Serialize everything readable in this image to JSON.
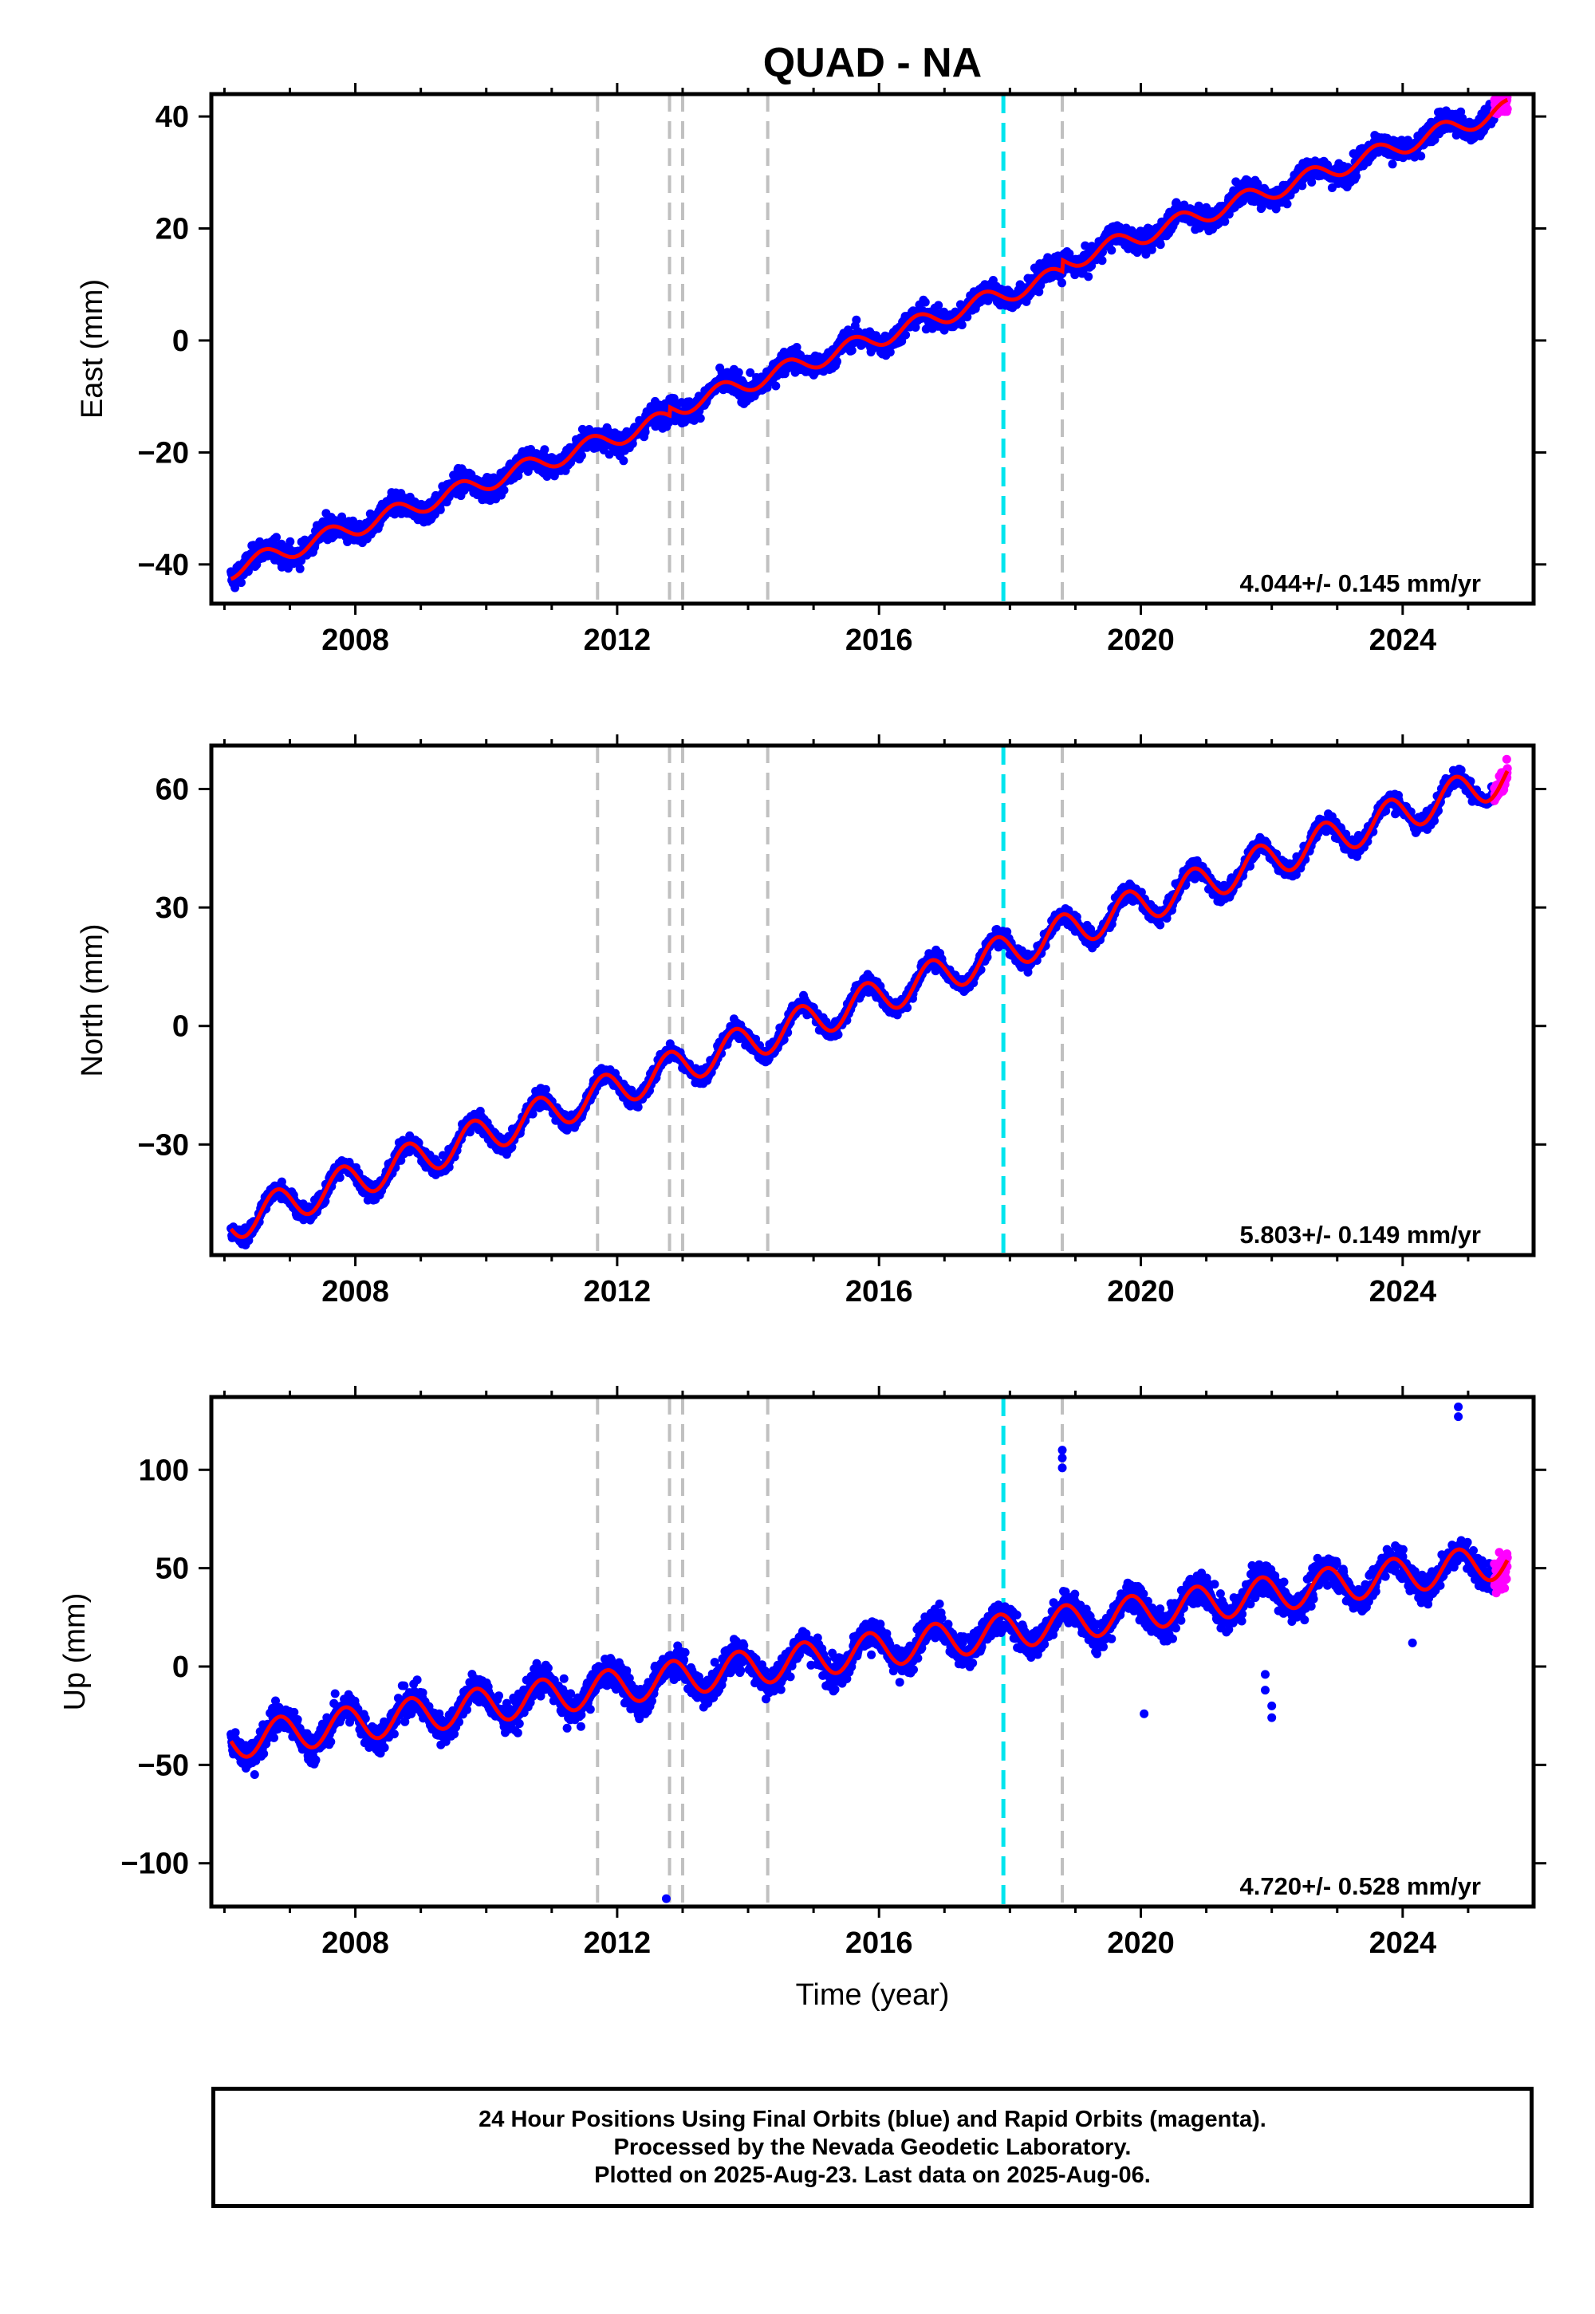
{
  "title": "QUAD - NA",
  "colors": {
    "final_orbits": "#0000ff",
    "rapid_orbits": "#ff00ff",
    "model_fit": "#ff0000",
    "equipment_change_line": "#c0c0c0",
    "earthquake_line": "#00e5ee",
    "frame": "#000000"
  },
  "chart_data": [
    {
      "type": "scatter",
      "panel": "east",
      "ylabel": "East (mm)",
      "xlabel": "",
      "xlim": [
        2005.8,
        2026.0
      ],
      "ylim": [
        -47,
        44
      ],
      "yticks": [
        -40,
        -20,
        0,
        20,
        40
      ],
      "ytick_labels": [
        "−40",
        "−20",
        "0",
        "20",
        "40"
      ],
      "xticks": [
        2008,
        2012,
        2016,
        2020,
        2024
      ],
      "xtick_labels": [
        "2008",
        "2012",
        "2016",
        "2020",
        "2024"
      ],
      "rate_label": "4.044+/- 0.145 mm/yr",
      "vlines_gray": [
        2011.7,
        2012.8,
        2013.0,
        2014.3,
        2018.8
      ],
      "vline_cyan": 2017.9,
      "series": [
        {
          "role": "final_orbits",
          "x_range": [
            2006.1,
            2025.4
          ],
          "amplitude": 1.6,
          "scatter": 1.4
        },
        {
          "role": "rapid_orbits",
          "x_range": [
            2025.4,
            2025.6
          ],
          "amplitude": 1.6,
          "scatter": 1.2
        },
        {
          "role": "model_fit"
        }
      ],
      "model": {
        "t0": 2006.1,
        "offset": -41.0,
        "rate": 4.044,
        "annual_amp": 1.6,
        "annual_phase": 0.35,
        "steps": [
          {
            "t": 2012.8,
            "dy": 1.5
          },
          {
            "t": 2018.8,
            "dy": 2.0
          }
        ]
      },
      "outliers": []
    },
    {
      "type": "scatter",
      "panel": "north",
      "ylabel": "North (mm)",
      "xlabel": "",
      "xlim": [
        2005.8,
        2026.0
      ],
      "ylim": [
        -58,
        71
      ],
      "yticks": [
        -30,
        0,
        30,
        60
      ],
      "ytick_labels": [
        "−30",
        "0",
        "30",
        "60"
      ],
      "xticks": [
        2008,
        2012,
        2016,
        2020,
        2024
      ],
      "xtick_labels": [
        "2008",
        "2012",
        "2016",
        "2020",
        "2024"
      ],
      "rate_label": "5.803+/- 0.149 mm/yr",
      "vlines_gray": [
        2011.7,
        2012.8,
        2013.0,
        2014.3,
        2018.8
      ],
      "vline_cyan": 2017.9,
      "series": [
        {
          "role": "final_orbits",
          "x_range": [
            2006.1,
            2025.4
          ],
          "amplitude": 4.5,
          "scatter": 1.5
        },
        {
          "role": "rapid_orbits",
          "x_range": [
            2025.4,
            2025.6
          ],
          "amplitude": 4.5,
          "scatter": 1.5
        },
        {
          "role": "model_fit"
        }
      ],
      "model": {
        "t0": 2006.1,
        "offset": -50.0,
        "rate": 5.803,
        "annual_amp": 4.5,
        "annual_phase": 0.55,
        "steps": []
      },
      "outliers": []
    },
    {
      "type": "scatter",
      "panel": "up",
      "ylabel": "Up (mm)",
      "xlabel": "Time (year)",
      "xlim": [
        2005.8,
        2026.0
      ],
      "ylim": [
        -122,
        137
      ],
      "yticks": [
        -100,
        -50,
        0,
        50,
        100
      ],
      "ytick_labels": [
        "−100",
        "−50",
        "0",
        "50",
        "100"
      ],
      "xticks": [
        2008,
        2012,
        2016,
        2020,
        2024
      ],
      "xtick_labels": [
        "2008",
        "2012",
        "2016",
        "2020",
        "2024"
      ],
      "rate_label": "4.720+/- 0.528 mm/yr",
      "vlines_gray": [
        2011.7,
        2012.8,
        2013.0,
        2014.3,
        2018.8
      ],
      "vline_cyan": 2017.9,
      "series": [
        {
          "role": "final_orbits",
          "x_range": [
            2006.1,
            2025.4
          ],
          "amplitude": 9.0,
          "scatter": 5.5
        },
        {
          "role": "rapid_orbits",
          "x_range": [
            2025.4,
            2025.6
          ],
          "amplitude": 9.0,
          "scatter": 6.0
        },
        {
          "role": "model_fit"
        }
      ],
      "model": {
        "t0": 2006.1,
        "offset": -38.0,
        "rate": 4.72,
        "annual_amp": 9.0,
        "annual_phase": 0.6,
        "steps": []
      },
      "outliers": [
        {
          "x": 2012.75,
          "y": -118
        },
        {
          "x": 2018.8,
          "y": 110
        },
        {
          "x": 2018.8,
          "y": 106
        },
        {
          "x": 2018.8,
          "y": 101
        },
        {
          "x": 2020.05,
          "y": -24
        },
        {
          "x": 2021.9,
          "y": -4
        },
        {
          "x": 2021.9,
          "y": -12
        },
        {
          "x": 2022.0,
          "y": -20
        },
        {
          "x": 2022.0,
          "y": -26
        },
        {
          "x": 2024.15,
          "y": 12
        },
        {
          "x": 2024.85,
          "y": 132
        },
        {
          "x": 2024.85,
          "y": 127
        }
      ]
    }
  ],
  "footer": {
    "line1": "24 Hour Positions Using Final Orbits (blue) and Rapid Orbits (magenta).",
    "line2": "Processed by the Nevada Geodetic Laboratory.",
    "line3": "Plotted on 2025-Aug-23. Last data on 2025-Aug-06."
  }
}
